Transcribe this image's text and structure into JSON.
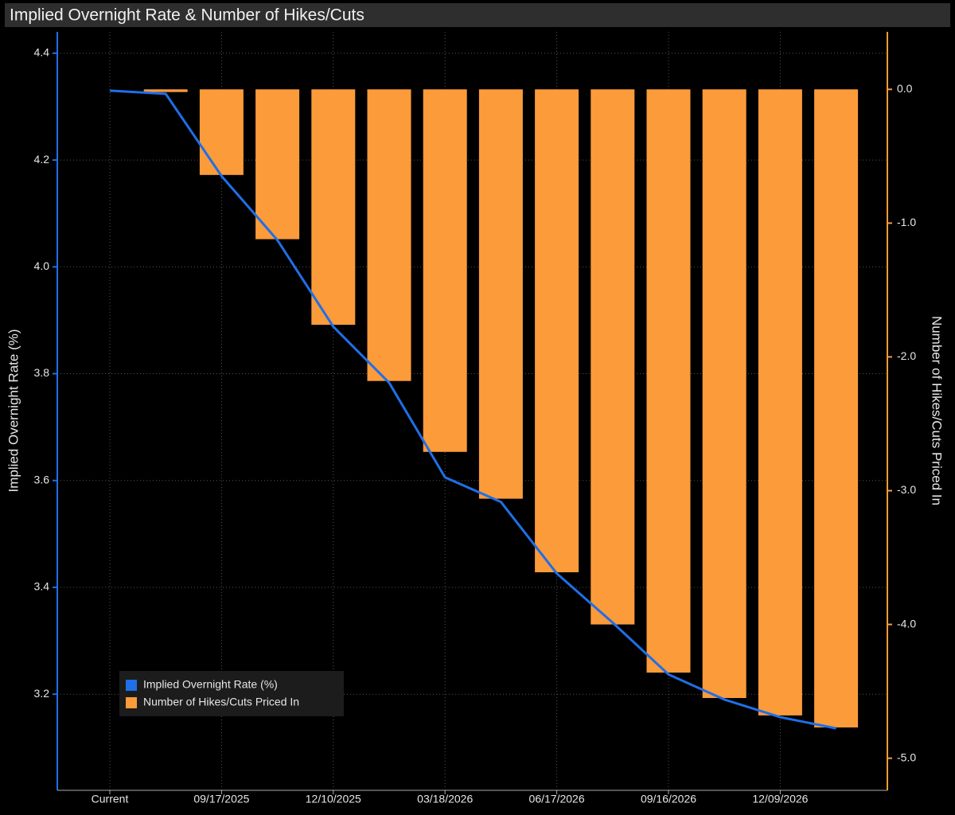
{
  "chart_data": {
    "type": "combo",
    "title": "Implied Overnight Rate & Number of Hikes/Cuts",
    "y_label": "Implied Overnight Rate (%)",
    "y2_label": "Number of Hikes/Cuts Priced In",
    "categories": [
      "Current",
      null,
      "09/17/2025",
      null,
      "12/10/2025",
      null,
      "03/18/2026",
      null,
      "06/17/2026",
      null,
      "09/16/2026",
      null,
      "12/09/2026",
      null
    ],
    "series": [
      {
        "name": "Implied Overnight Rate (%)",
        "type": "line",
        "color": "#1f6fe8",
        "values": [
          4.33,
          4.324,
          4.17,
          4.05,
          3.888,
          3.783,
          3.606,
          3.56,
          3.426,
          3.334,
          3.237,
          3.19,
          3.157,
          3.136
        ]
      },
      {
        "name": "Number of Hikes/Cuts Priced In",
        "type": "bar",
        "axis": "y2",
        "color": "#fb9b3a",
        "values": [
          null,
          -0.02,
          -0.64,
          -1.12,
          -1.76,
          -2.18,
          -2.71,
          -3.06,
          -3.61,
          -4.0,
          -4.36,
          -4.55,
          -4.68,
          -4.77
        ]
      }
    ],
    "ylim": [
      3.02,
      4.44
    ],
    "yticks": [
      3.2,
      3.4,
      3.6,
      3.8,
      {
        "value": 4,
        "label": "4.0"
      },
      4.2,
      4.4
    ],
    "y2lim": [
      -5.24,
      0.43
    ],
    "y2ticks": [
      {
        "value": -5,
        "label": "-5.0"
      },
      {
        "value": -4,
        "label": "-4.0"
      },
      {
        "value": -3,
        "label": "-3.0"
      },
      {
        "value": -2,
        "label": "-2.0"
      },
      {
        "value": -1,
        "label": "-1.0"
      },
      {
        "value": 0,
        "label": "0.0"
      }
    ],
    "grid": true,
    "legend": "lower-left"
  }
}
